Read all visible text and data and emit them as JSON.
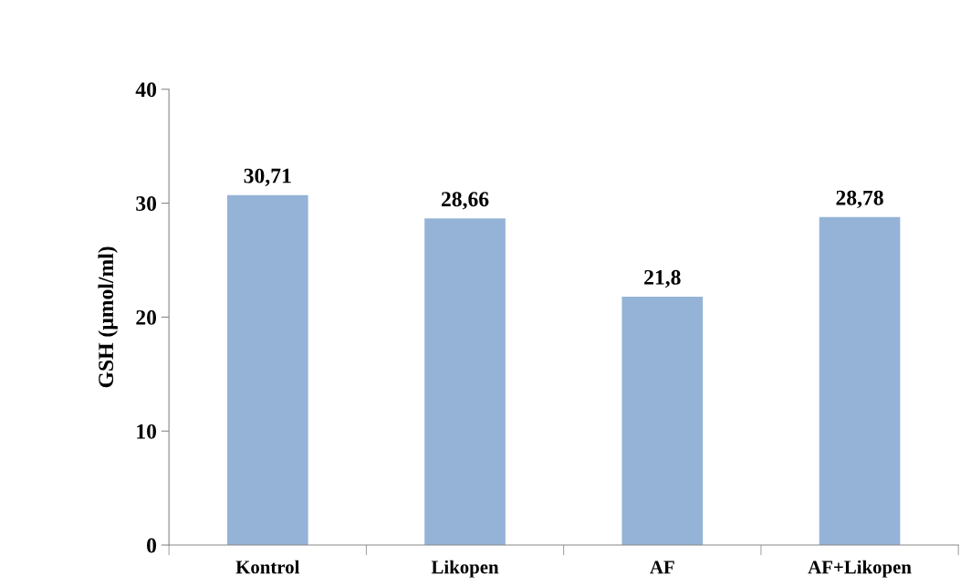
{
  "chart_data": {
    "type": "bar",
    "ylabel": "GSH (µmol/ml)",
    "categories": [
      "Kontrol",
      "Likopen",
      "AF",
      "AF+Likopen"
    ],
    "values": [
      30.71,
      28.66,
      21.8,
      28.78
    ],
    "value_labels": [
      "30,71",
      "28,66",
      "21,8",
      "28,78"
    ],
    "color": "#95b3d7",
    "ylim": [
      0,
      40
    ],
    "yticks": [
      0,
      10,
      20,
      30,
      40
    ],
    "grid": false,
    "legend": false
  }
}
